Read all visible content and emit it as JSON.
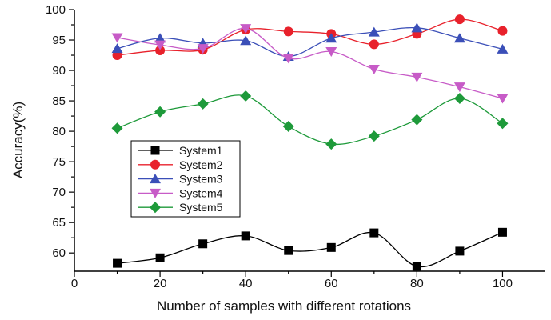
{
  "chart_data": {
    "type": "line",
    "xlabel": "Number of samples with different rotations",
    "ylabel": "Accuracy(%)",
    "xlim": [
      0,
      110
    ],
    "ylim": [
      57,
      100
    ],
    "xticks": [
      0,
      10,
      20,
      30,
      40,
      50,
      60,
      70,
      80,
      90,
      100
    ],
    "xtick_labels": [
      "0",
      "20",
      "40",
      "60",
      "80",
      "100"
    ],
    "yticks": [
      60,
      65,
      70,
      75,
      80,
      85,
      90,
      95,
      100
    ],
    "legend_position": "center-left",
    "grid": false,
    "x": [
      10,
      20,
      30,
      40,
      50,
      60,
      70,
      80,
      90,
      100
    ],
    "series": [
      {
        "name": "System1",
        "marker": "square",
        "color": "#000000",
        "values": [
          58.3,
          59.2,
          61.5,
          62.8,
          60.4,
          60.9,
          63.3,
          57.8,
          60.3,
          63.4
        ]
      },
      {
        "name": "System2",
        "marker": "circle",
        "color": "#e8212b",
        "values": [
          92.5,
          93.3,
          93.4,
          96.7,
          96.4,
          96.0,
          94.3,
          96.0,
          98.4,
          96.5
        ]
      },
      {
        "name": "System3",
        "marker": "triangle-up",
        "color": "#3b4fb8",
        "values": [
          93.6,
          95.3,
          94.5,
          94.9,
          92.3,
          95.3,
          96.3,
          97.0,
          95.3,
          93.5
        ]
      },
      {
        "name": "System4",
        "marker": "triangle-down",
        "color": "#c75bc7",
        "values": [
          95.4,
          94.2,
          93.6,
          96.9,
          92.0,
          93.1,
          90.2,
          88.9,
          87.3,
          85.4
        ]
      },
      {
        "name": "System5",
        "marker": "diamond",
        "color": "#1e9a3a",
        "values": [
          80.5,
          83.2,
          84.5,
          85.8,
          80.8,
          77.9,
          79.2,
          81.9,
          85.4,
          81.3
        ]
      }
    ]
  }
}
